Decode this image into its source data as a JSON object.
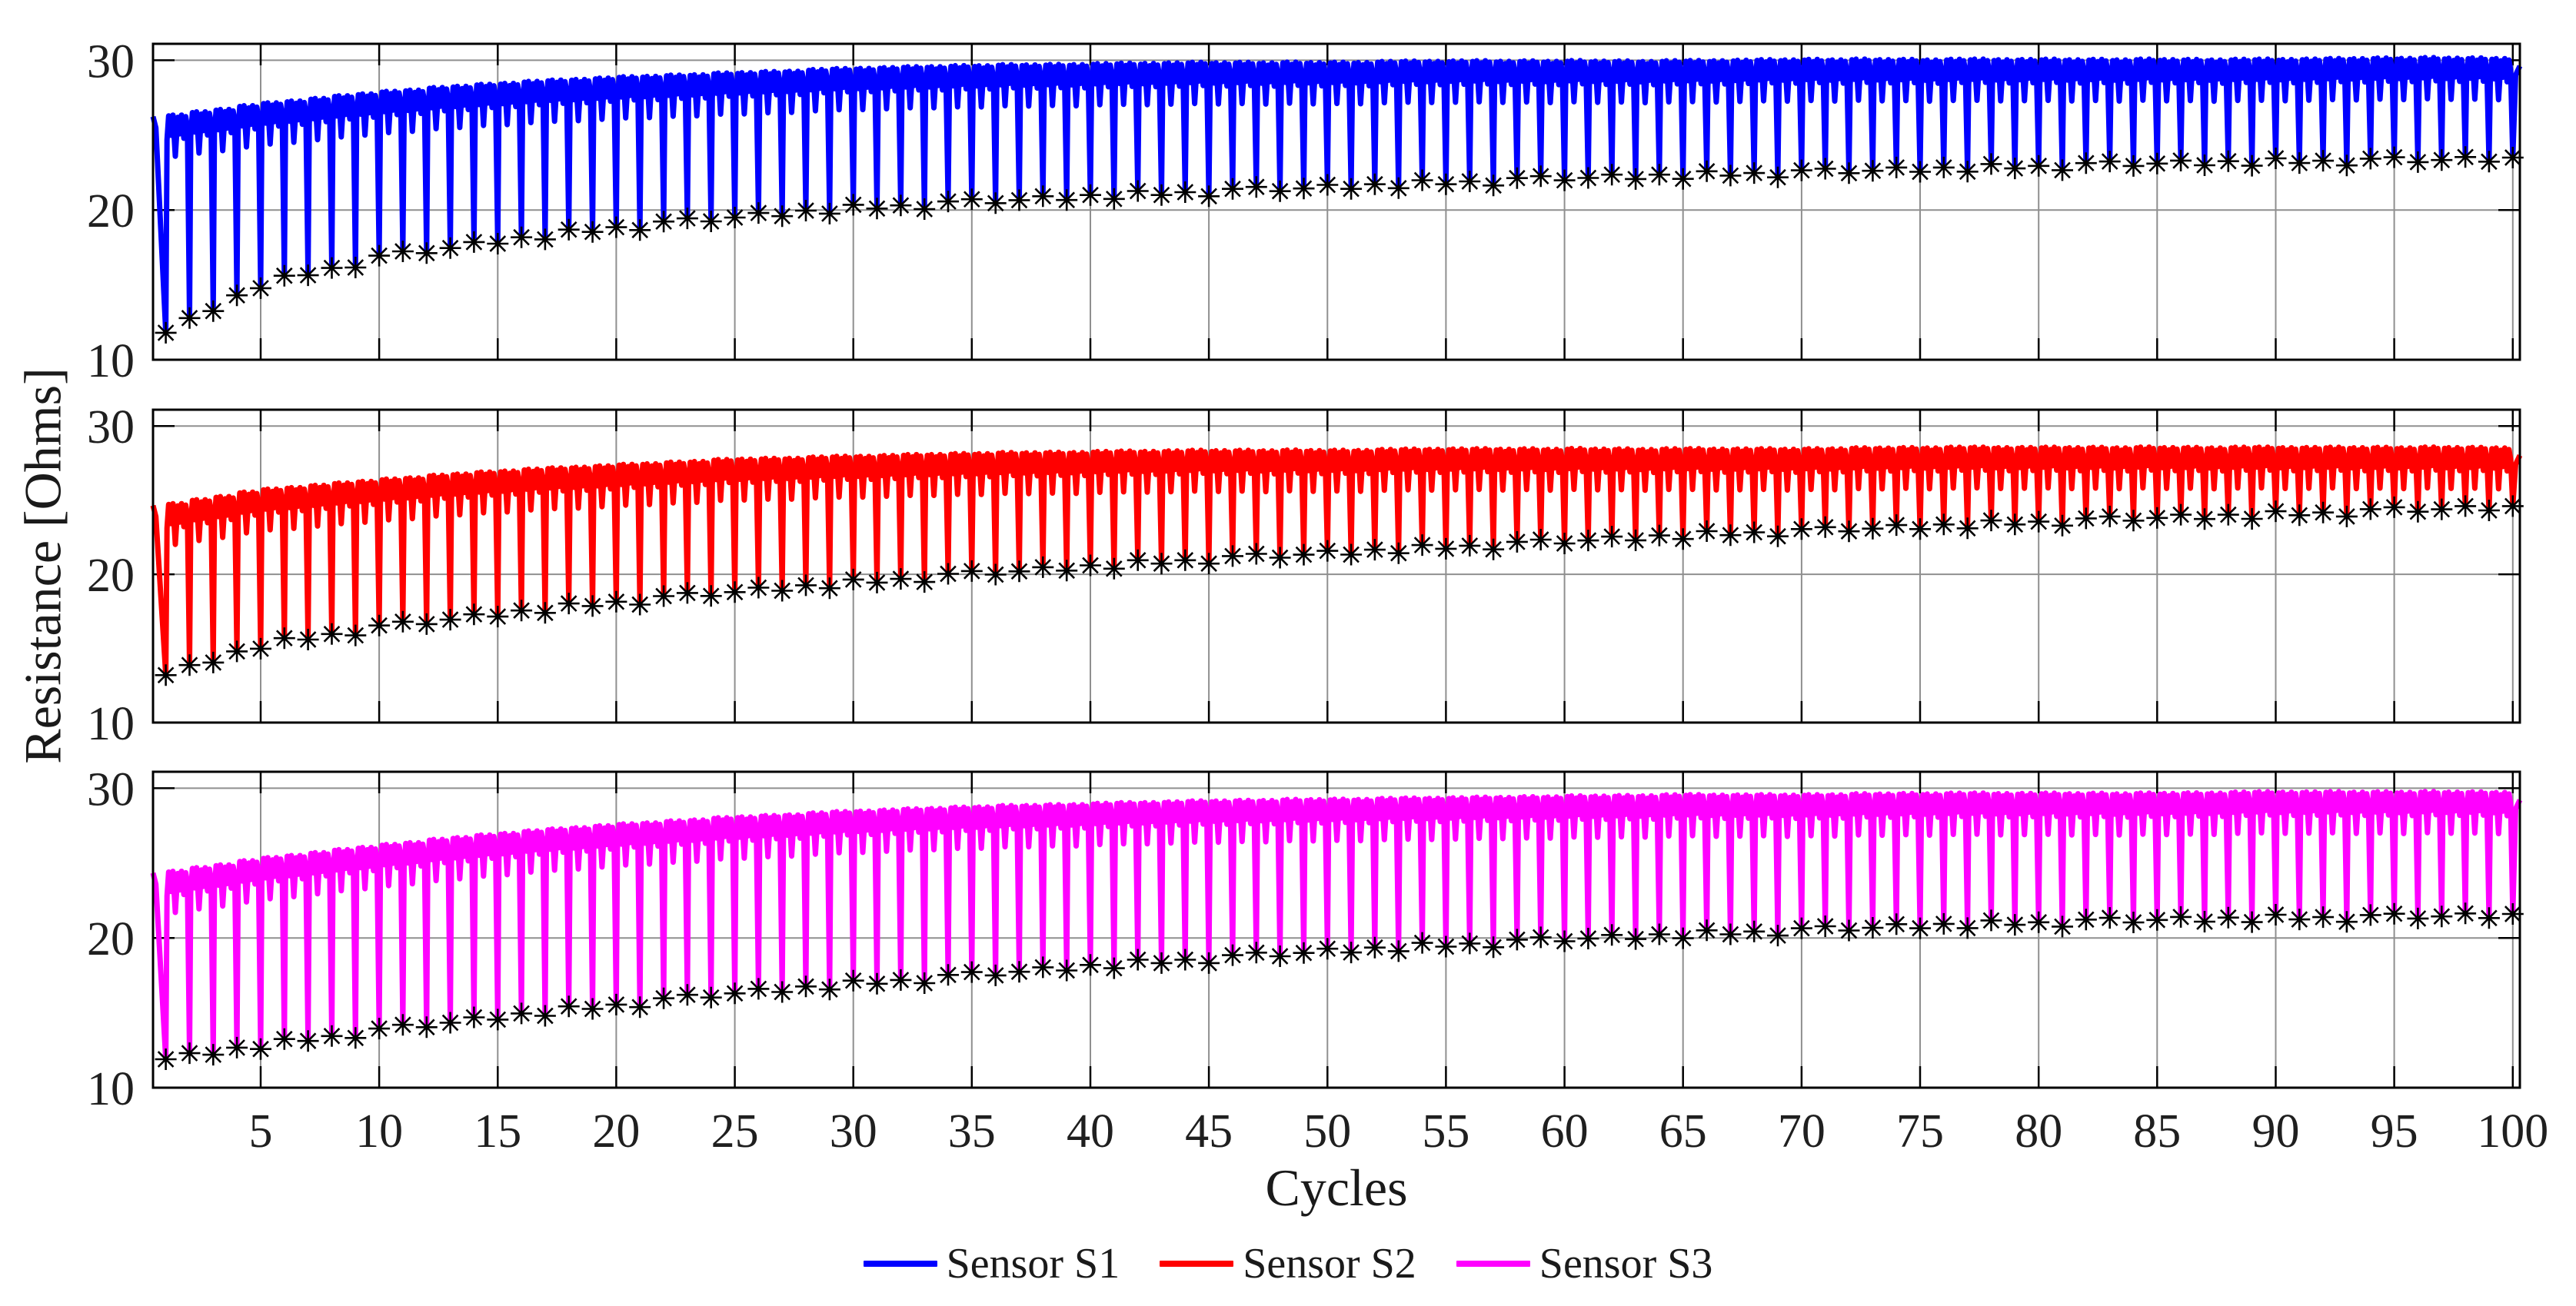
{
  "figure": {
    "background": "#ffffff",
    "ylabel": "Resistance [Ohms]",
    "xlabel": "Cycles"
  },
  "legend": {
    "entries": [
      {
        "label": "Sensor S1",
        "color": "#0000FF"
      },
      {
        "label": "Sensor S2",
        "color": "#FF0000"
      },
      {
        "label": "Sensor S3",
        "color": "#FF00FF"
      }
    ]
  },
  "chart_data": {
    "type": "line",
    "title": "",
    "xlabel": "Cycles",
    "ylabel": "Resistance [Ohms]",
    "grid": true,
    "legend_position": "below",
    "x_ticks": [
      5,
      10,
      15,
      20,
      25,
      30,
      35,
      40,
      45,
      50,
      55,
      60,
      65,
      70,
      75,
      80,
      85,
      90,
      95,
      100
    ],
    "y_ticks": [
      10,
      20,
      30
    ],
    "xlim": [
      0.46,
      100.3
    ],
    "ylim": [
      10,
      31.1
    ],
    "cycles": 100,
    "marker": "*",
    "marker_color": "#000000",
    "marker_meaning": "per-cycle minimum resistance",
    "anchor_cycles": [
      1,
      5,
      10,
      15,
      20,
      25,
      30,
      35,
      40,
      45,
      50,
      55,
      60,
      65,
      70,
      75,
      80,
      85,
      90,
      95,
      100
    ],
    "series": [
      {
        "name": "Sensor S1",
        "subplot": 1,
        "color": "#0000FF",
        "peaks_at_anchors": [
          26.4,
          27.2,
          28.0,
          28.6,
          29.0,
          29.3,
          29.6,
          29.8,
          29.9,
          30.0,
          30.0,
          30.1,
          30.1,
          30.1,
          30.2,
          30.2,
          30.2,
          30.2,
          30.2,
          30.3,
          30.3
        ],
        "minima_at_anchors": [
          11.8,
          15.0,
          16.8,
          17.9,
          18.8,
          19.5,
          20.1,
          20.5,
          20.9,
          21.2,
          21.5,
          21.8,
          22.1,
          22.3,
          22.5,
          22.7,
          22.9,
          23.1,
          23.2,
          23.3,
          23.4
        ]
      },
      {
        "name": "Sensor S2",
        "subplot": 2,
        "color": "#FF0000",
        "peaks_at_anchors": [
          24.8,
          25.8,
          26.5,
          27.1,
          27.5,
          27.9,
          28.1,
          28.3,
          28.4,
          28.5,
          28.5,
          28.6,
          28.6,
          28.6,
          28.6,
          28.7,
          28.7,
          28.7,
          28.7,
          28.7,
          28.7
        ],
        "minima_at_anchors": [
          13.2,
          15.2,
          16.4,
          17.3,
          18.1,
          18.8,
          19.4,
          20.0,
          20.5,
          21.0,
          21.4,
          21.8,
          22.2,
          22.6,
          22.9,
          23.2,
          23.5,
          23.8,
          24.0,
          24.3,
          24.5
        ]
      },
      {
        "name": "Sensor S3",
        "subplot": 3,
        "color": "#FF00FF",
        "peaks_at_anchors": [
          24.5,
          25.4,
          26.3,
          27.1,
          27.7,
          28.2,
          28.6,
          28.9,
          29.1,
          29.3,
          29.4,
          29.5,
          29.6,
          29.7,
          29.7,
          29.8,
          29.8,
          29.8,
          29.9,
          29.9,
          29.9
        ],
        "minima_at_anchors": [
          11.9,
          12.8,
          13.8,
          14.7,
          15.5,
          16.3,
          16.9,
          17.5,
          18.1,
          18.6,
          19.1,
          19.5,
          19.9,
          20.2,
          20.5,
          20.8,
          21.0,
          21.2,
          21.3,
          21.4,
          21.5
        ]
      }
    ],
    "minima_jitter": [
      0.0,
      0.18,
      -0.15,
      0.1,
      -0.22,
      0.25,
      -0.08,
      0.05,
      -0.28,
      0.15,
      0.22,
      -0.12
    ],
    "cycle_shape": {
      "f": [
        0.05,
        0.12,
        0.22,
        0.3,
        0.4,
        0.5,
        0.58,
        0.66,
        0.76,
        0.84,
        0.91
      ],
      "depth": [
        1.8,
        0.2,
        1.5,
        0.15,
        2.9,
        0.3,
        1.4,
        0.15,
        1.7,
        0.25,
        0.9
      ]
    },
    "description": "Three stacked subplots; each cycle shows a double-humped plateau near the peak envelope with a mid-cycle notch, then a deep V down to the per-cycle minimum marked with a black asterisk."
  },
  "style": {
    "grid_color": "#8f8f8f",
    "box_color": "#000000",
    "tick_color": "#000000",
    "text_color": "#1f1f1f"
  }
}
